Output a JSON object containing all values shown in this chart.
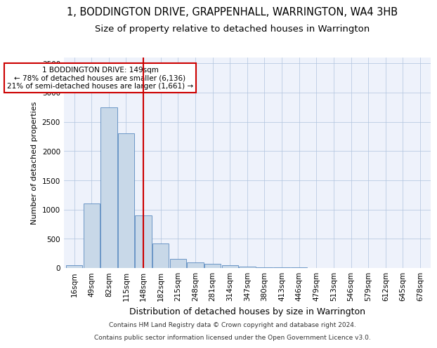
{
  "title": "1, BODDINGTON DRIVE, GRAPPENHALL, WARRINGTON, WA4 3HB",
  "subtitle": "Size of property relative to detached houses in Warrington",
  "xlabel": "Distribution of detached houses by size in Warrington",
  "ylabel": "Number of detached properties",
  "footer_line1": "Contains HM Land Registry data © Crown copyright and database right 2024.",
  "footer_line2": "Contains public sector information licensed under the Open Government Licence v3.0.",
  "bin_labels": [
    "16sqm",
    "49sqm",
    "82sqm",
    "115sqm",
    "148sqm",
    "182sqm",
    "215sqm",
    "248sqm",
    "281sqm",
    "314sqm",
    "347sqm",
    "380sqm",
    "413sqm",
    "446sqm",
    "479sqm",
    "513sqm",
    "546sqm",
    "579sqm",
    "612sqm",
    "645sqm",
    "678sqm"
  ],
  "bar_values": [
    50,
    1100,
    2750,
    2300,
    900,
    425,
    155,
    100,
    70,
    45,
    25,
    15,
    10,
    8,
    4,
    3,
    2,
    1,
    1,
    0,
    0
  ],
  "bar_color": "#c8d8e8",
  "bar_edge_color": "#5a8abf",
  "property_bin_index": 4,
  "vline_color": "#cc0000",
  "annotation_text": "1 BODDINGTON DRIVE: 149sqm\n← 78% of detached houses are smaller (6,136)\n21% of semi-detached houses are larger (1,661) →",
  "annotation_box_color": "#ffffff",
  "annotation_box_edge": "#cc0000",
  "ylim": [
    0,
    3600
  ],
  "yticks": [
    0,
    500,
    1000,
    1500,
    2000,
    2500,
    3000,
    3500
  ],
  "title_fontsize": 10.5,
  "subtitle_fontsize": 9.5,
  "ylabel_fontsize": 8,
  "xlabel_fontsize": 9,
  "tick_fontsize": 7.5,
  "annotation_fontsize": 7.5,
  "footer_fontsize": 6.5,
  "bg_color": "#eef2fb"
}
